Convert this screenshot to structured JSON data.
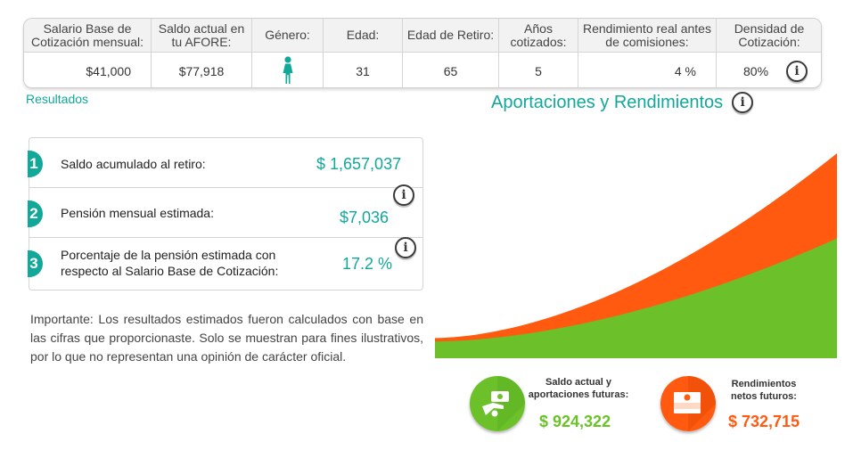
{
  "summary": {
    "headers": {
      "salario": "Salario Base de Cotización mensual:",
      "saldo": "Saldo actual en tu AFORE:",
      "genero": "Género:",
      "edad": "Edad:",
      "edad_retiro": "Edad de Retiro:",
      "anios": "Años cotizados:",
      "rendimiento": "Rendimiento real antes de comisiones:",
      "densidad": "Densidad de Cotización:"
    },
    "values": {
      "salario": "$41,000",
      "saldo": "$77,918",
      "genero_icon": "female-person-icon",
      "edad": "31",
      "edad_retiro": "65",
      "anios": "5",
      "rendimiento": "4 %",
      "densidad": "80%"
    }
  },
  "section_label": "Resultados",
  "chart_title": "Aportaciones y Rendimientos",
  "info_glyph": "i",
  "results": [
    {
      "num": "1",
      "label": "Saldo acumulado al retiro:",
      "value": "$ 1,657,037"
    },
    {
      "num": "2",
      "label": "Pensión mensual estimada:",
      "value": "$7,036"
    },
    {
      "num": "3",
      "label_line1": "Porcentaje de la pensión estimada con",
      "label_line2": "respecto al Salario Base de Cotización:",
      "value": "17.2 %"
    }
  ],
  "important_text": "Importante: Los resultados estimados fueron calculados con base en las cifras que proporcionaste. Solo se muestran para fines ilustrativos, por lo que no representan una opinión de carácter oficial.",
  "legend": {
    "aportaciones": {
      "line1": "Saldo actual y",
      "line2": "aportaciones futuras:",
      "value": "$ 924,322",
      "color": "#6cc12a",
      "icon": "hand-money-icon"
    },
    "rendimientos": {
      "line1": "Rendimientos",
      "line2": "netos futuros:",
      "value": "$ 732,715",
      "color": "#ff5a10",
      "icon": "money-stack-icon"
    }
  },
  "colors": {
    "accent": "#11a89a",
    "green": "#6cc12a",
    "orange": "#ff5a10"
  },
  "chart_data": {
    "type": "area",
    "stacked": true,
    "series": [
      {
        "name": "Saldo actual y aportaciones futuras",
        "color": "#6cc12a",
        "final_value": 924322
      },
      {
        "name": "Rendimientos netos futuros",
        "color": "#ff5a10",
        "final_value": 732715
      }
    ],
    "total_final": 1657037,
    "axes_visible": false,
    "grid": false
  }
}
